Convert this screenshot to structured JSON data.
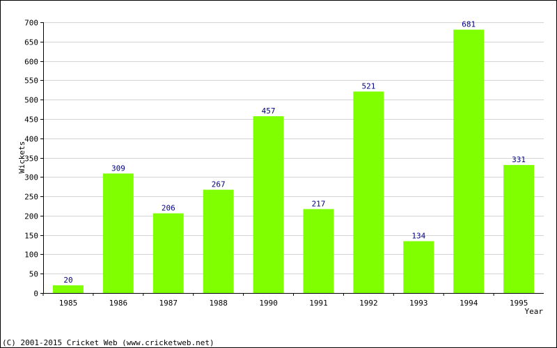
{
  "chart_data": {
    "type": "bar",
    "categories": [
      "1985",
      "1986",
      "1987",
      "1988",
      "1990",
      "1991",
      "1992",
      "1993",
      "1994",
      "1995"
    ],
    "values": [
      20,
      309,
      206,
      267,
      457,
      217,
      521,
      134,
      681,
      331
    ],
    "xlabel": "Year",
    "ylabel": "Wickets",
    "ylim": [
      0,
      700
    ],
    "yticks": [
      0,
      50,
      100,
      150,
      200,
      250,
      300,
      350,
      400,
      450,
      500,
      550,
      600,
      650,
      700
    ],
    "grid": true,
    "bar_color": "#80ff00",
    "label_color": "#000080",
    "grid_color": "#d3d3d3"
  },
  "footer": {
    "copyright": "(C) 2001-2015 Cricket Web (www.cricketweb.net)"
  }
}
